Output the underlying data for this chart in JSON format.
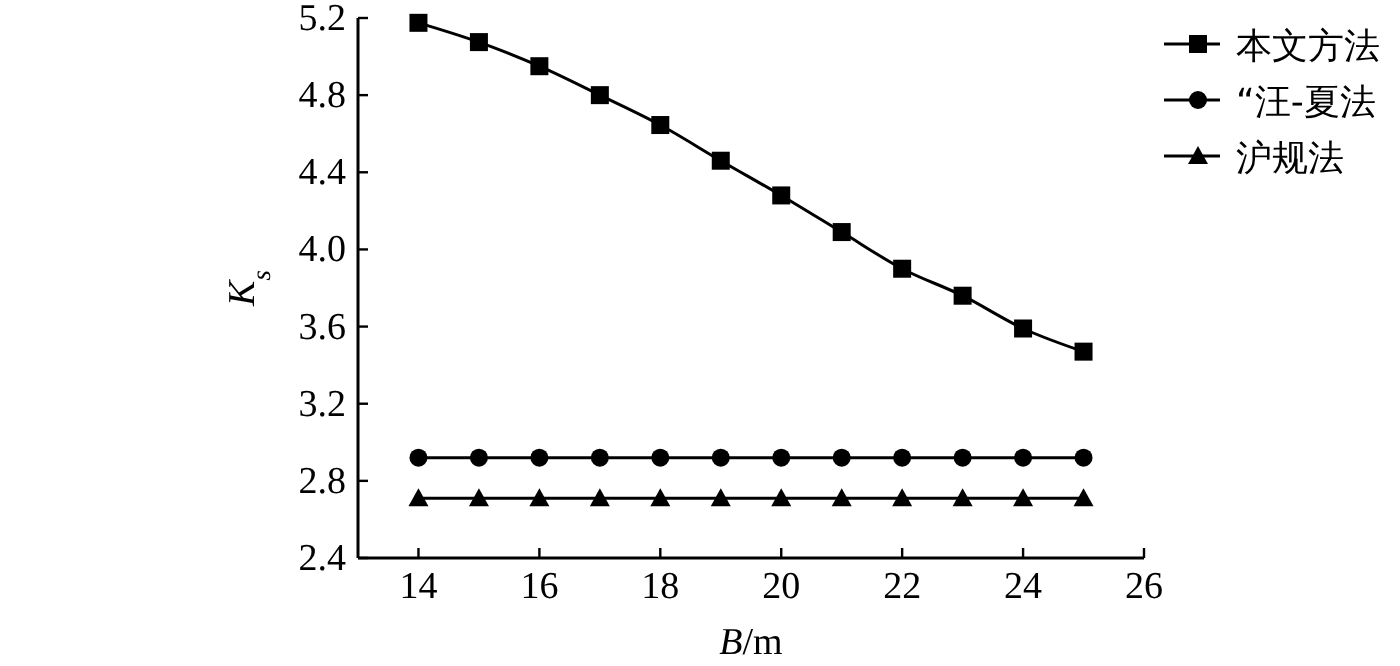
{
  "chart_data": {
    "type": "line",
    "xlabel": "B/m",
    "ylabel": "K$_{s}$",
    "x": [
      14,
      15,
      16,
      17,
      18,
      19,
      20,
      21,
      22,
      23,
      24,
      25
    ],
    "series": [
      {
        "name": "本文方法",
        "color": "#000000",
        "marker": "square",
        "values": [
          5.175,
          5.075,
          4.95,
          4.8,
          4.645,
          4.46,
          4.28,
          4.09,
          3.9,
          3.76,
          3.59,
          3.47
        ]
      },
      {
        "name": "“汪-夏法",
        "color": "#000000",
        "marker": "circle",
        "values": [
          2.92,
          2.92,
          2.92,
          2.92,
          2.92,
          2.92,
          2.92,
          2.92,
          2.92,
          2.92,
          2.92,
          2.92
        ]
      },
      {
        "name": "沪规法",
        "color": "#000000",
        "marker": "triangle",
        "values": [
          2.71,
          2.71,
          2.71,
          2.71,
          2.71,
          2.71,
          2.71,
          2.71,
          2.71,
          2.71,
          2.71,
          2.71
        ]
      }
    ],
    "xlim": [
      13,
      26
    ],
    "xticks": [
      14,
      16,
      18,
      20,
      22,
      24,
      26
    ],
    "ylim": [
      2.4,
      5.2
    ],
    "yticks": [
      {
        "value": 2.4,
        "label": "2.4"
      },
      {
        "value": 2.8,
        "label": "2.8"
      },
      {
        "value": 3.2,
        "label": "3.2"
      },
      {
        "value": 3.6,
        "label": "3.6"
      },
      {
        "value": 4.0,
        "label": "4.0"
      },
      {
        "value": 4.4,
        "label": "4.4"
      },
      {
        "value": 4.8,
        "label": "4.8"
      },
      {
        "value": 5.2,
        "label": "5.2"
      }
    ],
    "grid": false,
    "legend": "top right",
    "line_style": "solid"
  }
}
